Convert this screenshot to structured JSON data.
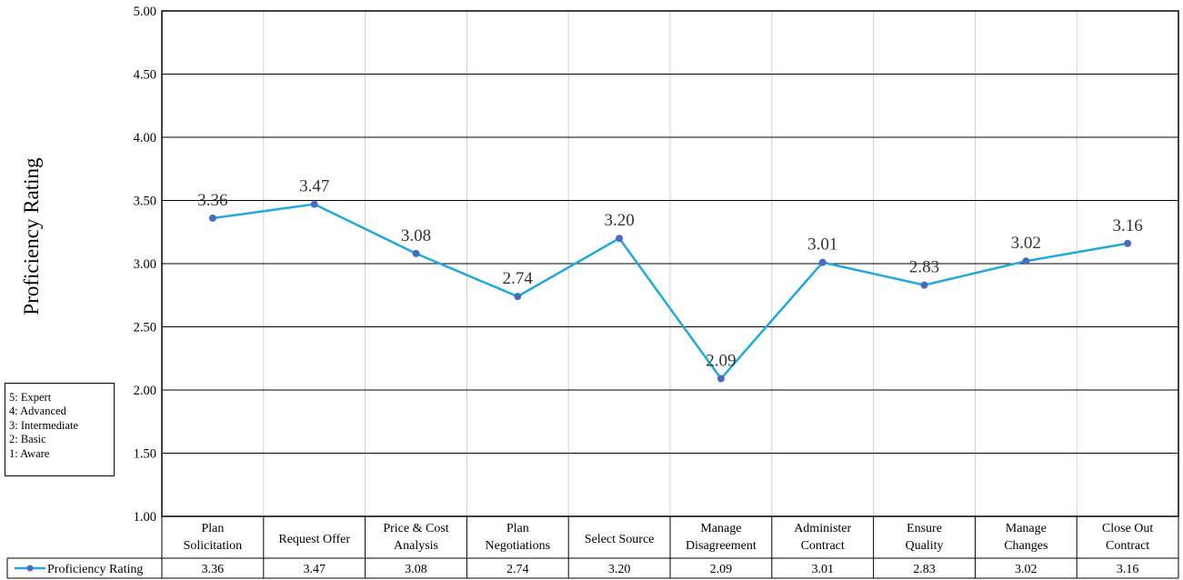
{
  "chart_data": {
    "type": "line",
    "ylabel": "Proficiency Rating",
    "ylim": [
      1.0,
      5.0
    ],
    "yticks": [
      "1.00",
      "1.50",
      "2.00",
      "2.50",
      "3.00",
      "3.50",
      "4.00",
      "4.50",
      "5.00"
    ],
    "grid": true,
    "categories": [
      [
        "Plan",
        "Solicitation"
      ],
      [
        "Request Offer"
      ],
      [
        "Price & Cost",
        "Analysis"
      ],
      [
        "Plan",
        "Negotiations"
      ],
      [
        "Select Source"
      ],
      [
        "Manage",
        "Disagreement"
      ],
      [
        "Administer",
        "Contract"
      ],
      [
        "Ensure",
        "Quality"
      ],
      [
        "Manage",
        "Changes"
      ],
      [
        "Close Out",
        "Contract"
      ]
    ],
    "series": [
      {
        "name": "Proficiency Rating",
        "color": "#1fa8e0",
        "marker_color": "#4a6bbf",
        "values": [
          3.36,
          3.47,
          3.08,
          2.74,
          3.2,
          2.09,
          3.01,
          2.83,
          3.02,
          3.16
        ],
        "labels": [
          "3.36",
          "3.47",
          "3.08",
          "2.74",
          "3.20",
          "2.09",
          "3.01",
          "2.83",
          "3.02",
          "3.16"
        ]
      }
    ],
    "data_table": true
  },
  "scale_legend": [
    "5:  Expert",
    "4:  Advanced",
    "3:  Intermediate",
    "2:  Basic",
    "1:  Aware"
  ]
}
